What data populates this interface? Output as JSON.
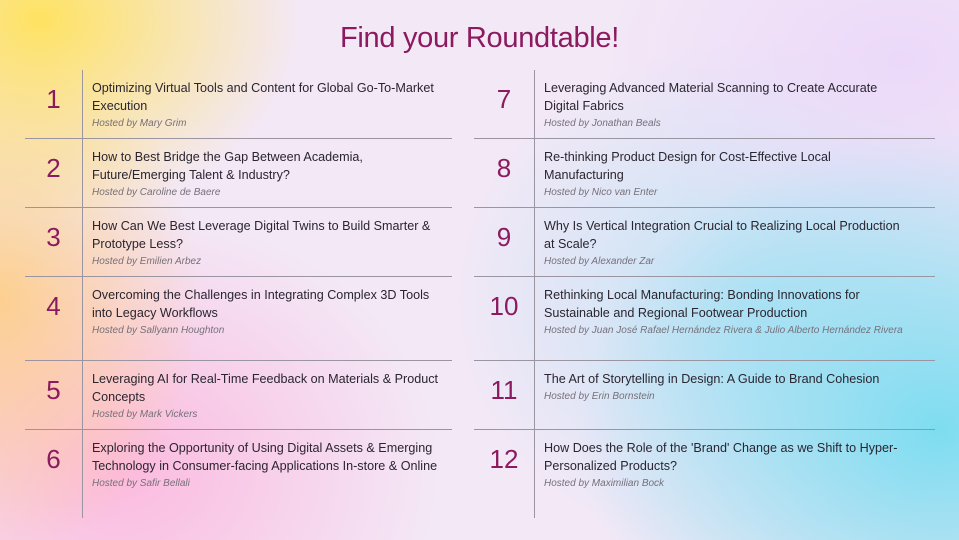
{
  "title": "Find your Roundtable!",
  "accent_color": "#8b1a5e",
  "roundtables": [
    {
      "number": "1",
      "title": "Optimizing Virtual Tools and Content for Global Go-To-Market Execution",
      "host": "Hosted by Mary Grim"
    },
    {
      "number": "2",
      "title": "How to Best Bridge the Gap Between Academia, Future/Emerging Talent & Industry?",
      "host": "Hosted by Caroline de Baere"
    },
    {
      "number": "3",
      "title": "How Can We Best Leverage Digital Twins to Build Smarter & Prototype Less?",
      "host": "Hosted by Emilien Arbez"
    },
    {
      "number": "4",
      "title": "Overcoming the Challenges in Integrating Complex 3D Tools into Legacy Workflows",
      "host": "Hosted by Sallyann Houghton"
    },
    {
      "number": "5",
      "title": "Leveraging AI for Real-Time Feedback on Materials & Product Concepts",
      "host": "Hosted by Mark Vickers"
    },
    {
      "number": "6",
      "title": "Exploring the Opportunity of Using Digital Assets & Emerging Technology in Consumer-facing Applications In-store & Online",
      "host": "Hosted by Safir Bellali"
    },
    {
      "number": "7",
      "title": "Leveraging Advanced Material Scanning to Create Accurate Digital Fabrics",
      "host": "Hosted by Jonathan Beals"
    },
    {
      "number": "8",
      "title": "Re-thinking Product Design for Cost-Effective Local Manufacturing",
      "host": "Hosted by Nico van Enter"
    },
    {
      "number": "9",
      "title": "Why Is Vertical Integration Crucial to Realizing Local Production at Scale?",
      "host": "Hosted by Alexander Zar"
    },
    {
      "number": "10",
      "title": "Rethinking Local Manufacturing: Bonding Innovations for Sustainable and Regional Footwear Production",
      "host": "Hosted by Juan José Rafael Hernández Rivera & Julio Alberto Hernández Rivera"
    },
    {
      "number": "11",
      "title": "The Art of Storytelling in Design: A Guide to Brand Cohesion",
      "host": "Hosted by Erin Bornstein"
    },
    {
      "number": "12",
      "title": "How Does the Role of the 'Brand' Change as we Shift to Hyper-Personalized Products?",
      "host": "Hosted by Maximilian Bock"
    }
  ]
}
